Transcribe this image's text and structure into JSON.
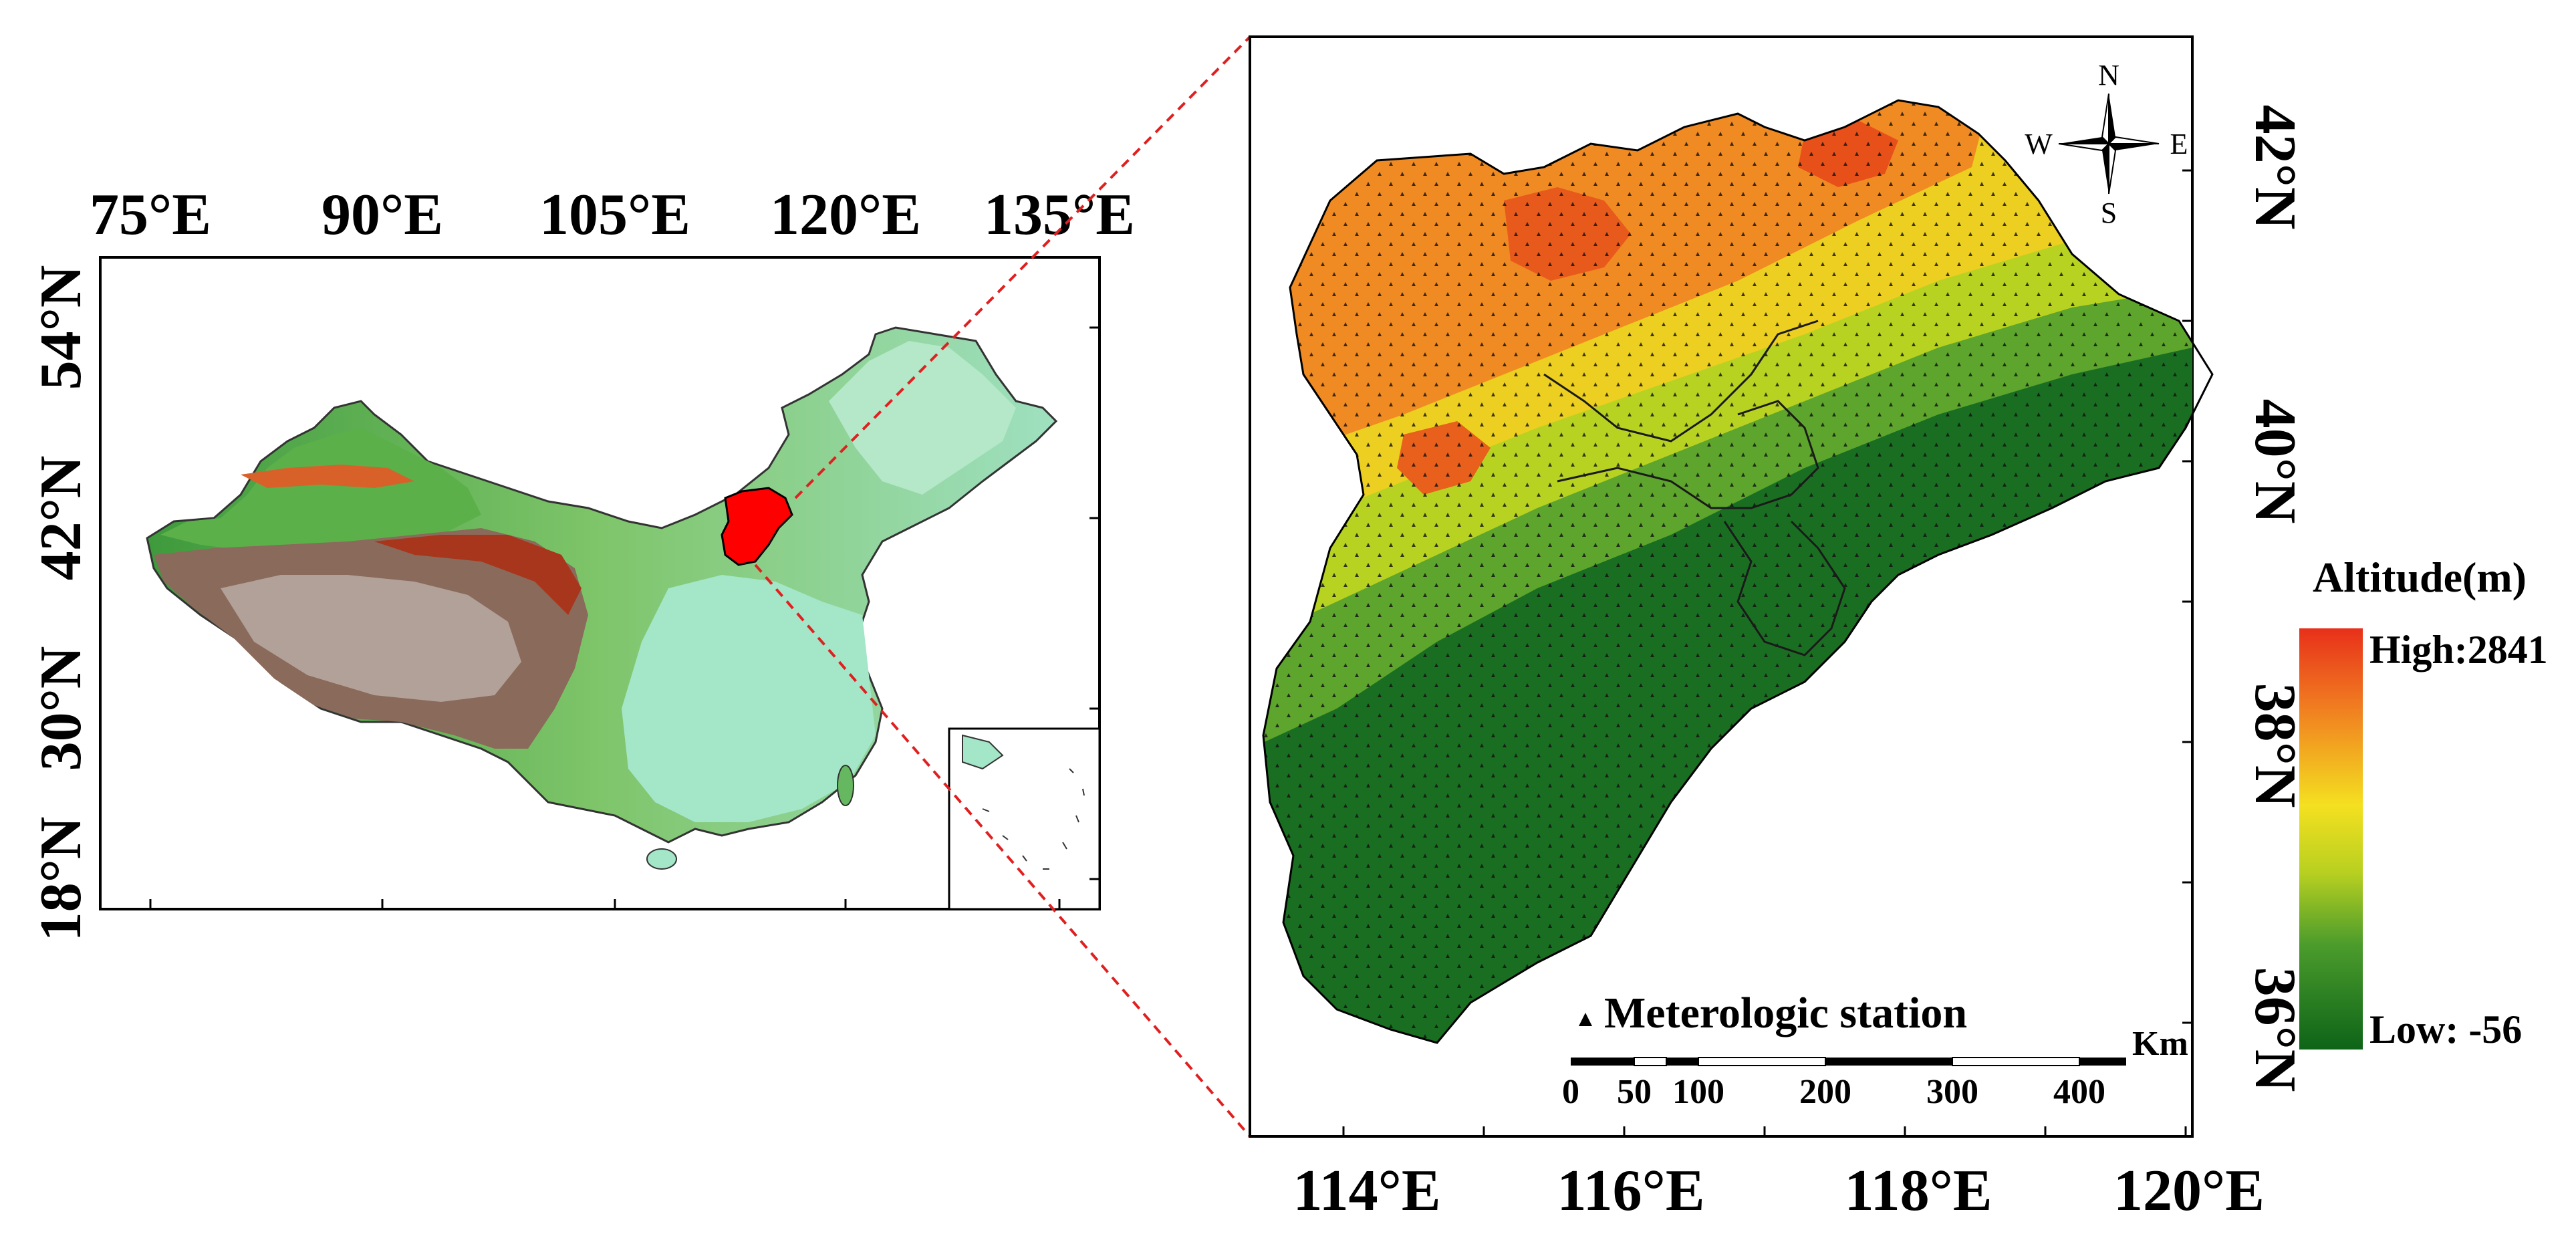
{
  "overview_map": {
    "lon_ticks": [
      "75°E",
      "90°E",
      "105°E",
      "120°E",
      "135°E"
    ],
    "lat_ticks": [
      "54°N",
      "42°N",
      "30°N",
      "18°N"
    ],
    "highlight_region_color": "#ff0000"
  },
  "detail_map": {
    "lon_ticks": [
      "114°E",
      "116°E",
      "118°E",
      "120°E"
    ],
    "lat_ticks": [
      "42°N",
      "40°N",
      "38°N",
      "36°N"
    ],
    "compass": {
      "n": "N",
      "s": "S",
      "e": "E",
      "w": "W"
    },
    "station_legend": "Meterologic station",
    "scale_bar": {
      "unit": "Km",
      "labels": [
        "0",
        "50",
        "100",
        "200",
        "300",
        "400"
      ]
    }
  },
  "legend": {
    "title": "Altitude(m)",
    "high_label": "High:2841",
    "low_label": "Low: -56",
    "colors": [
      "#e8301a",
      "#f08020",
      "#f4d020",
      "#c0d820",
      "#60a830",
      "#1f7a2a",
      "#0f6a1a"
    ]
  },
  "connector_color": "#e02020"
}
